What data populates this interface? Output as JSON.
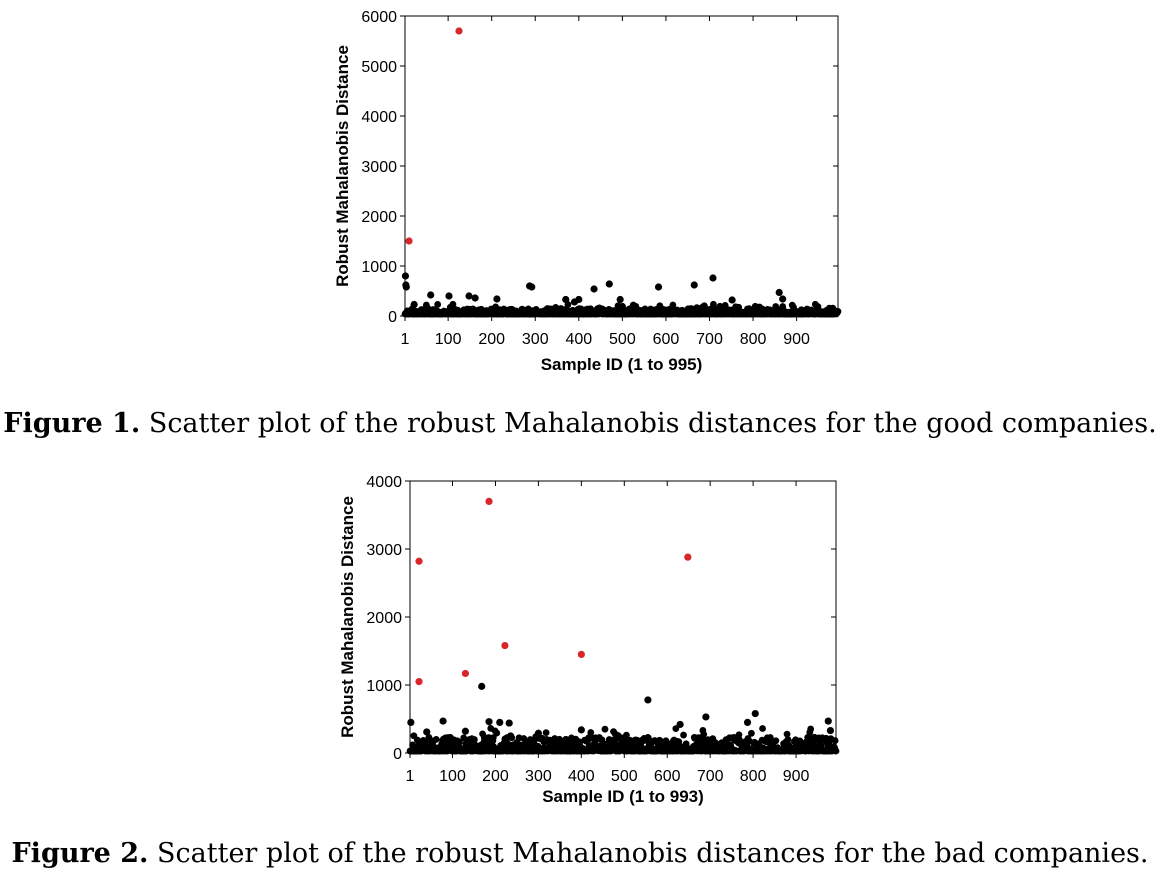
{
  "chart_data": [
    {
      "type": "scatter",
      "title": "",
      "xlabel": "Sample ID (1 to 995)",
      "ylabel": "Robust Mahalanobis Distance",
      "xlim": [
        1,
        995
      ],
      "ylim": [
        0,
        6000
      ],
      "x_ticks": [
        "1",
        "100",
        "200",
        "300",
        "400",
        "500",
        "600",
        "700",
        "800",
        "900"
      ],
      "y_ticks": [
        "0",
        "1000",
        "2000",
        "3000",
        "4000",
        "5000",
        "6000"
      ],
      "grid": false,
      "colors": {
        "outlier": "#d9262b",
        "regular": "#000000"
      },
      "outliers": [
        {
          "x": 1,
          "y": 1500
        },
        {
          "x": 125,
          "y": 5700
        }
      ],
      "notable_points": [
        {
          "x": 2,
          "y": 800
        },
        {
          "x": 3,
          "y": 620
        },
        {
          "x": 4,
          "y": 580
        },
        {
          "x": 22,
          "y": 230
        },
        {
          "x": 60,
          "y": 420
        },
        {
          "x": 102,
          "y": 400
        },
        {
          "x": 148,
          "y": 400
        },
        {
          "x": 162,
          "y": 360
        },
        {
          "x": 212,
          "y": 340
        },
        {
          "x": 287,
          "y": 600
        },
        {
          "x": 292,
          "y": 580
        },
        {
          "x": 370,
          "y": 330
        },
        {
          "x": 390,
          "y": 280
        },
        {
          "x": 400,
          "y": 330
        },
        {
          "x": 435,
          "y": 540
        },
        {
          "x": 470,
          "y": 640
        },
        {
          "x": 495,
          "y": 330
        },
        {
          "x": 500,
          "y": 190
        },
        {
          "x": 583,
          "y": 580
        },
        {
          "x": 665,
          "y": 620
        },
        {
          "x": 708,
          "y": 760
        },
        {
          "x": 688,
          "y": 200
        },
        {
          "x": 752,
          "y": 320
        },
        {
          "x": 860,
          "y": 470
        },
        {
          "x": 868,
          "y": 340
        }
      ],
      "bulk": {
        "n": 995,
        "typical_max": 150
      }
    },
    {
      "type": "scatter",
      "title": "",
      "xlabel": "Sample ID (1 to 993)",
      "ylabel": "Robust Mahalanobis Distance",
      "xlim": [
        1,
        993
      ],
      "ylim": [
        0,
        4000
      ],
      "x_ticks": [
        "1",
        "100",
        "200",
        "300",
        "400",
        "500",
        "600",
        "700",
        "800",
        "900"
      ],
      "y_ticks": [
        "0",
        "1000",
        "2000",
        "3000",
        "4000"
      ],
      "grid": false,
      "colors": {
        "outlier": "#d9262b",
        "regular": "#000000"
      },
      "outliers": [
        {
          "x": 22,
          "y": 1050
        },
        {
          "x": 22,
          "y": 2820
        },
        {
          "x": 130,
          "y": 1170
        },
        {
          "x": 185,
          "y": 3700
        },
        {
          "x": 222,
          "y": 1580
        },
        {
          "x": 400,
          "y": 1450
        },
        {
          "x": 648,
          "y": 2880
        }
      ],
      "notable_points": [
        {
          "x": 168,
          "y": 980
        },
        {
          "x": 555,
          "y": 780
        },
        {
          "x": 690,
          "y": 530
        },
        {
          "x": 805,
          "y": 580
        },
        {
          "x": 787,
          "y": 450
        },
        {
          "x": 3,
          "y": 450
        },
        {
          "x": 78,
          "y": 470
        },
        {
          "x": 185,
          "y": 460
        },
        {
          "x": 210,
          "y": 450
        },
        {
          "x": 232,
          "y": 440
        },
        {
          "x": 630,
          "y": 420
        },
        {
          "x": 975,
          "y": 470
        },
        {
          "x": 980,
          "y": 330
        },
        {
          "x": 40,
          "y": 310
        },
        {
          "x": 130,
          "y": 320
        },
        {
          "x": 300,
          "y": 290
        },
        {
          "x": 400,
          "y": 340
        },
        {
          "x": 480,
          "y": 270
        }
      ],
      "bulk": {
        "n": 993,
        "typical_max": 230
      }
    }
  ],
  "figures": [
    {
      "label": "Figure 1.",
      "caption": " Scatter plot of the robust Mahalanobis distances for the good companies."
    },
    {
      "label": "Figure 2.",
      "caption": " Scatter plot of the robust Mahalanobis distances for the bad companies."
    }
  ]
}
